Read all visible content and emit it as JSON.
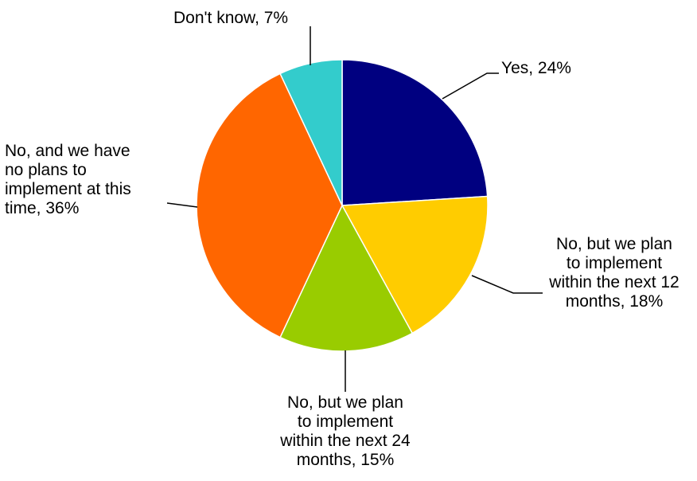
{
  "chart_data": {
    "type": "pie",
    "title": "",
    "start_angle_deg": 0,
    "direction": "clockwise",
    "slices": [
      {
        "label": "Yes, 24%",
        "value": 24,
        "color": "#000080"
      },
      {
        "label": "No, but we plan\nto implement\nwithin the next 12\nmonths, 18%",
        "value": 18,
        "color": "#FFCC00"
      },
      {
        "label": "No, but we plan\nto implement\nwithin the next 24\nmonths, 15%",
        "value": 15,
        "color": "#99CC00"
      },
      {
        "label": "No, and we have\nno plans to\nimplement at this\ntime, 36%",
        "value": 36,
        "color": "#FF6600"
      },
      {
        "label": "Don't know, 7%",
        "value": 7,
        "color": "#33CCCC"
      }
    ]
  }
}
